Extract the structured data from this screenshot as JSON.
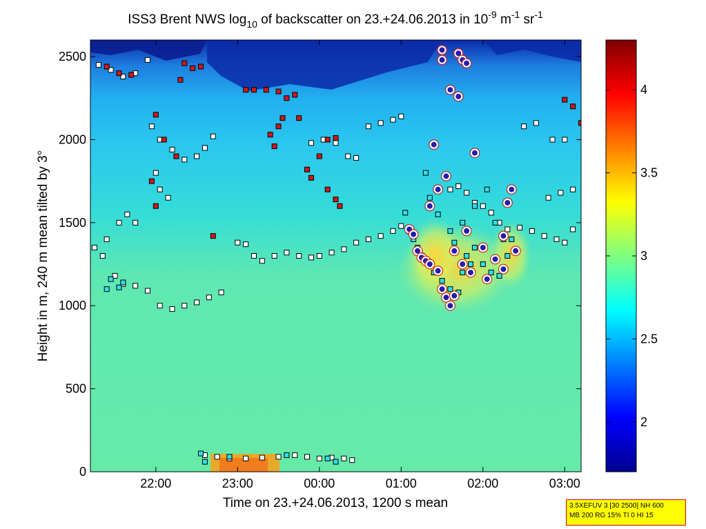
{
  "chart_data": {
    "type": "heatmap",
    "title": {
      "p1": "ISS3 Brent NWS log",
      "p1_sub": "10",
      "p2": " of backscatter on 23.+24.06.2013 in 10",
      "p2_sup": "-9",
      "p3": " m",
      "p3_sup": "-1",
      "p4": " sr",
      "p4_sup": "-1"
    },
    "xlabel": "Time on 23.+24.06.2013, 1200 s mean",
    "ylabel": "Height in m, 240 m mean tilted by 3°",
    "x_range_hours": [
      21.2,
      27.2
    ],
    "x_ticks": [
      {
        "h": 22,
        "label": "22:00"
      },
      {
        "h": 23,
        "label": "23:00"
      },
      {
        "h": 24,
        "label": "00:00"
      },
      {
        "h": 25,
        "label": "01:00"
      },
      {
        "h": 26,
        "label": "02:00"
      },
      {
        "h": 27,
        "label": "03:00"
      }
    ],
    "ylim": [
      0,
      2600
    ],
    "y_ticks": [
      {
        "v": 0,
        "label": "0"
      },
      {
        "v": 500,
        "label": "500"
      },
      {
        "v": 1000,
        "label": "1000"
      },
      {
        "v": 1500,
        "label": "1500"
      },
      {
        "v": 2000,
        "label": "2000"
      },
      {
        "v": 2500,
        "label": "2500"
      }
    ],
    "colorbar": {
      "range": [
        1.7,
        4.3
      ],
      "ticks": [
        {
          "v": 2,
          "label": "2"
        },
        {
          "v": 2.5,
          "label": "2.5"
        },
        {
          "v": 3,
          "label": "3"
        },
        {
          "v": 3.5,
          "label": "3.5"
        },
        {
          "v": 4,
          "label": "4"
        }
      ]
    },
    "colormap": "jet",
    "series": [
      {
        "marker": "square",
        "fill": "#ffffff",
        "points": [
          [
            21.25,
            1350
          ],
          [
            21.35,
            1300
          ],
          [
            21.5,
            1180
          ],
          [
            21.6,
            1130
          ],
          [
            21.75,
            1120
          ],
          [
            21.9,
            1090
          ],
          [
            22.05,
            1000
          ],
          [
            22.2,
            980
          ],
          [
            22.35,
            1000
          ],
          [
            22.5,
            1020
          ],
          [
            22.65,
            1050
          ],
          [
            22.8,
            1080
          ],
          [
            21.3,
            2450
          ],
          [
            21.45,
            2420
          ],
          [
            21.6,
            2380
          ],
          [
            21.75,
            2400
          ],
          [
            21.9,
            2480
          ],
          [
            21.95,
            2080
          ],
          [
            22.05,
            2000
          ],
          [
            22.2,
            1940
          ],
          [
            22.35,
            1880
          ],
          [
            22.5,
            1900
          ],
          [
            22.6,
            1950
          ],
          [
            22.7,
            2020
          ],
          [
            21.4,
            1400
          ],
          [
            21.55,
            1500
          ],
          [
            21.65,
            1550
          ],
          [
            21.75,
            1500
          ],
          [
            22.0,
            1800
          ],
          [
            22.05,
            1700
          ],
          [
            22.15,
            1650
          ],
          [
            23.0,
            1380
          ],
          [
            23.1,
            1370
          ],
          [
            23.2,
            1300
          ],
          [
            23.3,
            1270
          ],
          [
            23.45,
            1300
          ],
          [
            23.6,
            1320
          ],
          [
            23.75,
            1300
          ],
          [
            23.9,
            1290
          ],
          [
            24.0,
            1300
          ],
          [
            24.15,
            1320
          ],
          [
            24.3,
            1340
          ],
          [
            24.45,
            1380
          ],
          [
            24.6,
            1400
          ],
          [
            24.75,
            1420
          ],
          [
            24.9,
            1450
          ],
          [
            25.0,
            1480
          ],
          [
            23.9,
            1980
          ],
          [
            24.05,
            2000
          ],
          [
            24.2,
            1980
          ],
          [
            24.35,
            1900
          ],
          [
            24.45,
            1890
          ],
          [
            24.6,
            2080
          ],
          [
            24.75,
            2100
          ],
          [
            24.9,
            2120
          ],
          [
            25.0,
            2140
          ],
          [
            25.6,
            1700
          ],
          [
            25.7,
            1720
          ],
          [
            25.8,
            1680
          ],
          [
            25.9,
            1620
          ],
          [
            26.0,
            1600
          ],
          [
            26.1,
            1560
          ],
          [
            26.2,
            1500
          ],
          [
            26.3,
            1460
          ],
          [
            26.45,
            1470
          ],
          [
            26.6,
            1450
          ],
          [
            26.75,
            1420
          ],
          [
            26.9,
            1400
          ],
          [
            27.0,
            1380
          ],
          [
            27.1,
            1460
          ],
          [
            26.5,
            2080
          ],
          [
            26.65,
            2100
          ],
          [
            26.85,
            2000
          ],
          [
            27.0,
            2000
          ],
          [
            26.8,
            1650
          ],
          [
            26.95,
            1680
          ],
          [
            27.1,
            1700
          ],
          [
            22.6,
            100
          ],
          [
            22.75,
            90
          ],
          [
            22.9,
            80
          ],
          [
            23.1,
            80
          ],
          [
            23.3,
            85
          ],
          [
            23.5,
            90
          ],
          [
            23.7,
            100
          ],
          [
            23.85,
            90
          ],
          [
            24.0,
            80
          ],
          [
            24.15,
            85
          ],
          [
            24.3,
            80
          ],
          [
            24.4,
            70
          ]
        ]
      },
      {
        "marker": "square",
        "fill": "#d01818",
        "points": [
          [
            21.4,
            2440
          ],
          [
            21.55,
            2400
          ],
          [
            21.7,
            2390
          ],
          [
            22.0,
            2150
          ],
          [
            22.1,
            2000
          ],
          [
            22.25,
            1900
          ],
          [
            22.7,
            1420
          ],
          [
            21.95,
            1750
          ],
          [
            22.0,
            1600
          ],
          [
            22.35,
            2460
          ],
          [
            22.45,
            2430
          ],
          [
            22.55,
            2440
          ],
          [
            22.3,
            2360
          ],
          [
            23.1,
            2300
          ],
          [
            23.2,
            2300
          ],
          [
            23.35,
            2300
          ],
          [
            23.5,
            2290
          ],
          [
            23.6,
            2250
          ],
          [
            23.7,
            2270
          ],
          [
            23.4,
            2030
          ],
          [
            23.45,
            1960
          ],
          [
            23.5,
            2080
          ],
          [
            23.55,
            2130
          ],
          [
            23.85,
            1820
          ],
          [
            23.9,
            1770
          ],
          [
            24.0,
            1900
          ],
          [
            24.1,
            1700
          ],
          [
            24.2,
            1640
          ],
          [
            24.25,
            1600
          ],
          [
            24.1,
            2000
          ],
          [
            24.2,
            2010
          ],
          [
            23.75,
            2130
          ],
          [
            27.0,
            2240
          ],
          [
            27.1,
            2200
          ],
          [
            27.2,
            2100
          ]
        ]
      },
      {
        "marker": "square",
        "fill": "#30e0e8",
        "points": [
          [
            25.05,
            1560
          ],
          [
            25.1,
            1450
          ],
          [
            25.15,
            1400
          ],
          [
            25.2,
            1350
          ],
          [
            25.25,
            1300
          ],
          [
            25.35,
            1250
          ],
          [
            25.4,
            1200
          ],
          [
            25.5,
            1150
          ],
          [
            25.6,
            1100
          ],
          [
            25.7,
            1080
          ],
          [
            25.75,
            1200
          ],
          [
            25.8,
            1300
          ],
          [
            25.85,
            1250
          ],
          [
            25.9,
            1350
          ],
          [
            26.0,
            1250
          ],
          [
            26.1,
            1200
          ],
          [
            26.2,
            1180
          ],
          [
            26.3,
            1300
          ],
          [
            26.35,
            1400
          ],
          [
            25.3,
            1800
          ],
          [
            25.35,
            1650
          ],
          [
            25.45,
            1550
          ],
          [
            25.6,
            1450
          ],
          [
            25.65,
            1380
          ],
          [
            25.75,
            1500
          ],
          [
            25.9,
            1600
          ],
          [
            26.05,
            1700
          ],
          [
            26.15,
            1500
          ],
          [
            26.25,
            1400
          ],
          [
            21.4,
            1100
          ],
          [
            21.45,
            1160
          ],
          [
            21.55,
            1110
          ],
          [
            21.6,
            1140
          ],
          [
            22.55,
            110
          ],
          [
            22.6,
            60
          ],
          [
            22.9,
            90
          ],
          [
            23.6,
            100
          ],
          [
            24.1,
            80
          ],
          [
            24.2,
            60
          ]
        ]
      },
      {
        "marker": "circle",
        "fill": "#2a1aa8",
        "points": [
          [
            25.1,
            1460
          ],
          [
            25.15,
            1430
          ],
          [
            25.2,
            1330
          ],
          [
            25.25,
            1290
          ],
          [
            25.3,
            1270
          ],
          [
            25.35,
            1250
          ],
          [
            25.45,
            1210
          ],
          [
            25.5,
            1100
          ],
          [
            25.55,
            1050
          ],
          [
            25.6,
            1000
          ],
          [
            25.65,
            1060
          ],
          [
            25.35,
            1600
          ],
          [
            25.45,
            1700
          ],
          [
            25.55,
            1780
          ],
          [
            25.65,
            1330
          ],
          [
            25.75,
            1250
          ],
          [
            25.8,
            1450
          ],
          [
            25.85,
            1200
          ],
          [
            25.9,
            1920
          ],
          [
            26.0,
            1350
          ],
          [
            26.05,
            1160
          ],
          [
            26.15,
            1280
          ],
          [
            26.25,
            1220
          ],
          [
            26.25,
            1420
          ],
          [
            26.3,
            1620
          ],
          [
            26.35,
            1700
          ],
          [
            26.4,
            1330
          ],
          [
            25.4,
            1970
          ],
          [
            25.5,
            2540
          ],
          [
            25.5,
            2480
          ],
          [
            25.7,
            2520
          ],
          [
            25.75,
            2480
          ],
          [
            25.6,
            2300
          ],
          [
            25.7,
            2260
          ],
          [
            25.8,
            2460
          ]
        ]
      }
    ]
  },
  "info": {
    "line1": "3.5XEFUV 3 [30 2500] NH 600",
    "line2": "MB 200 RG 15% TI 0 HI 15"
  }
}
